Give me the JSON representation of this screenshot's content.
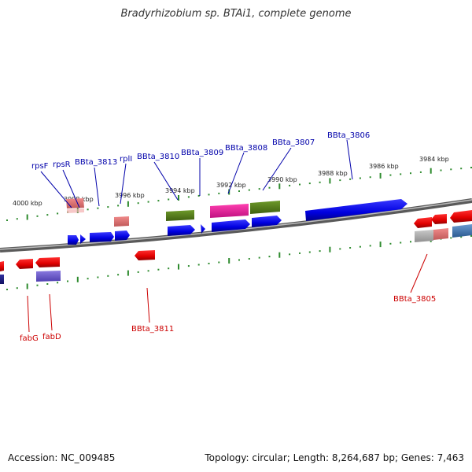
{
  "title": "Bradyrhizobium sp. BTAi1, complete genome",
  "accession": "Accession: NC_009485",
  "topology": "Topology: circular; Length: 8,264,687 bp; Genes: 7,463",
  "colors": {
    "top_label": "#0000aa",
    "bottom_label": "#cc0000",
    "ruler": "#2e8b2e",
    "backbone": "#7a7a7a"
  },
  "ruler_labels": [
    {
      "text": "4000 kbp"
    },
    {
      "text": "3998 kbp"
    },
    {
      "text": "3996 kbp"
    },
    {
      "text": "3994 kbp"
    },
    {
      "text": "3992 kbp"
    },
    {
      "text": "3990 kbp"
    },
    {
      "text": "3988 kbp"
    },
    {
      "text": "3986 kbp"
    },
    {
      "text": "3984 kbp"
    }
  ],
  "top_labels": [
    {
      "text": "rpsF"
    },
    {
      "text": "rpsR"
    },
    {
      "text": "BBta_3813"
    },
    {
      "text": "rplI"
    },
    {
      "text": "BBta_3810"
    },
    {
      "text": "BBta_3809"
    },
    {
      "text": "BBta_3808"
    },
    {
      "text": "BBta_3807"
    },
    {
      "text": "BBta_3806"
    }
  ],
  "bottom_labels": [
    {
      "text": "fabG"
    },
    {
      "text": "fabD"
    },
    {
      "text": "BBta_3811"
    },
    {
      "text": "BBta_3805"
    }
  ]
}
